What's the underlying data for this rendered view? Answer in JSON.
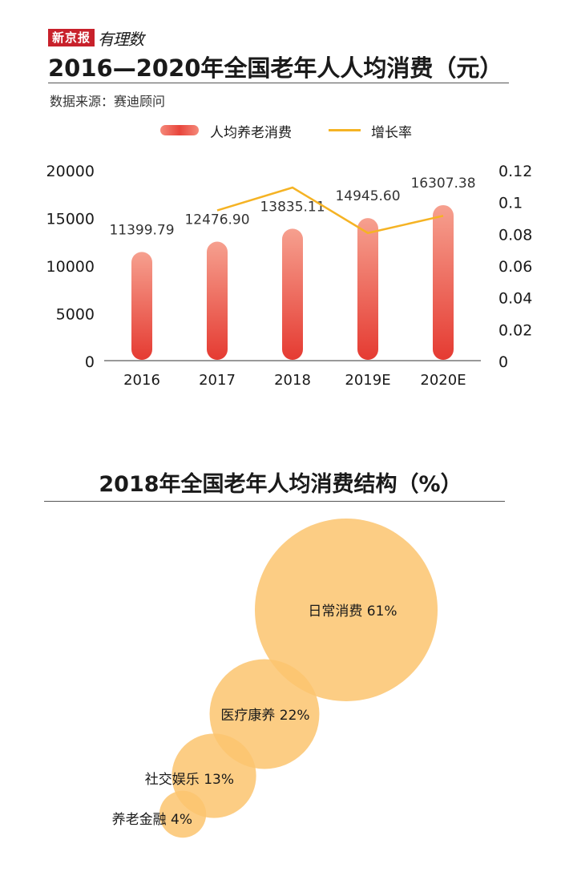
{
  "brand": {
    "name": "新京报",
    "tag": "有理数"
  },
  "title": "2016—2020年全国老年人人均消费（元）",
  "source": "数据来源：赛迪顾问",
  "legend": {
    "bar_label": "人均养老消费",
    "line_label": "增长率"
  },
  "colors": {
    "bar_top": "#f6a08f",
    "bar_bottom": "#e53b32",
    "line": "#f5b324",
    "bubble": "#fbc46e"
  },
  "chart_data": [
    {
      "type": "bar",
      "categories": [
        "2016",
        "2017",
        "2018",
        "2019E",
        "2020E"
      ],
      "series": [
        {
          "name": "人均养老消费",
          "type": "bar",
          "axis": "left",
          "values": [
            11399.79,
            12476.9,
            13835.11,
            14945.6,
            16307.38
          ],
          "labels": [
            "11399.79",
            "12476.90",
            "13835.11",
            "14945.60",
            "16307.38"
          ]
        },
        {
          "name": "增长率",
          "type": "line",
          "axis": "right",
          "values": [
            null,
            0.0945,
            0.1089,
            0.0803,
            0.0911
          ]
        }
      ],
      "ylim": [
        0,
        20000
      ],
      "yticks": [
        "0",
        "5000",
        "10000",
        "15000",
        "20000"
      ],
      "y2lim": [
        0,
        0.12
      ],
      "y2ticks": [
        "0",
        "0.02",
        "0.04",
        "0.06",
        "0.08",
        "0.1",
        "0.12"
      ],
      "grid": false,
      "legend_position": "top"
    },
    {
      "type": "bubble",
      "title": "2018年全国老年人均消费结构（%）",
      "items": [
        {
          "label": "日常消费",
          "value": 61,
          "text": "日常消费 61%"
        },
        {
          "label": "医疗康养",
          "value": 22,
          "text": "医疗康养 22%"
        },
        {
          "label": "社交娱乐",
          "value": 13,
          "text": "社交娱乐 13%"
        },
        {
          "label": "养老金融",
          "value": 4,
          "text": "养老金融 4%"
        }
      ]
    }
  ]
}
